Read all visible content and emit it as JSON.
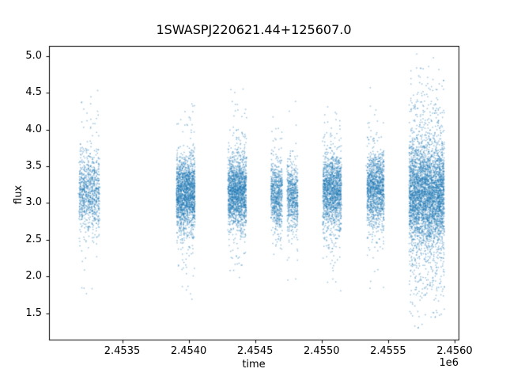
{
  "chart_data": {
    "type": "scatter",
    "title": "1SWASPJ220621.44+125607.0",
    "xlabel": "time",
    "ylabel": "flux",
    "x_offset_label": "1e6",
    "xlim": [
      2452950,
      2456030
    ],
    "ylim": [
      1.14,
      5.14
    ],
    "x_ticks": [
      2453500,
      2454000,
      2454500,
      2455000,
      2455500,
      2456000
    ],
    "x_tick_labels": [
      "2.4535",
      "2.4540",
      "2.4545",
      "2.4550",
      "2.4555",
      "2.4560"
    ],
    "y_ticks": [
      1.5,
      2.0,
      2.5,
      3.0,
      3.5,
      4.0,
      4.5,
      5.0
    ],
    "y_tick_labels": [
      "1.5",
      "2.0",
      "2.5",
      "3.0",
      "3.5",
      "4.0",
      "4.5",
      "5.0"
    ],
    "grid": false,
    "legend": null,
    "marker_color": "#1f77b4",
    "marker_alpha": 0.45,
    "frame_color": "#000000",
    "seed": 42,
    "clusters": [
      {
        "x_center": 2453253,
        "x_halfwidth": 70,
        "n": 900,
        "n_nights": 10,
        "flux_mean": 3.15,
        "core_std": 0.26,
        "tail_std": 0.65,
        "tail_frac": 0.13,
        "flux_min": 1.5,
        "flux_max": 4.85
      },
      {
        "x_center": 2453978,
        "x_halfwidth": 65,
        "n": 1800,
        "n_nights": 14,
        "flux_mean": 3.12,
        "core_std": 0.24,
        "tail_std": 0.6,
        "tail_frac": 0.12,
        "flux_min": 1.5,
        "flux_max": 4.45
      },
      {
        "x_center": 2454365,
        "x_halfwidth": 65,
        "n": 1700,
        "n_nights": 14,
        "flux_mean": 3.15,
        "core_std": 0.24,
        "tail_std": 0.6,
        "tail_frac": 0.12,
        "flux_min": 1.85,
        "flux_max": 4.7
      },
      {
        "x_center": 2454662,
        "x_halfwidth": 38,
        "n": 700,
        "n_nights": 8,
        "flux_mean": 3.1,
        "core_std": 0.22,
        "tail_std": 0.55,
        "tail_frac": 0.1,
        "flux_min": 2.3,
        "flux_max": 4.2
      },
      {
        "x_center": 2454781,
        "x_halfwidth": 36,
        "n": 600,
        "n_nights": 8,
        "flux_mean": 3.1,
        "core_std": 0.22,
        "tail_std": 0.55,
        "tail_frac": 0.1,
        "flux_min": 1.95,
        "flux_max": 4.78
      },
      {
        "x_center": 2455079,
        "x_halfwidth": 65,
        "n": 1500,
        "n_nights": 13,
        "flux_mean": 3.15,
        "core_std": 0.24,
        "tail_std": 0.6,
        "tail_frac": 0.12,
        "flux_min": 1.6,
        "flux_max": 4.75
      },
      {
        "x_center": 2455406,
        "x_halfwidth": 60,
        "n": 1300,
        "n_nights": 12,
        "flux_mean": 3.18,
        "core_std": 0.24,
        "tail_std": 0.6,
        "tail_frac": 0.12,
        "flux_min": 1.7,
        "flux_max": 4.72
      },
      {
        "x_center": 2455790,
        "x_halfwidth": 128,
        "n": 4000,
        "n_nights": 26,
        "flux_mean": 3.1,
        "core_std": 0.32,
        "tail_std": 0.8,
        "tail_frac": 0.3,
        "flux_min": 1.28,
        "flux_max": 5.03
      }
    ]
  }
}
